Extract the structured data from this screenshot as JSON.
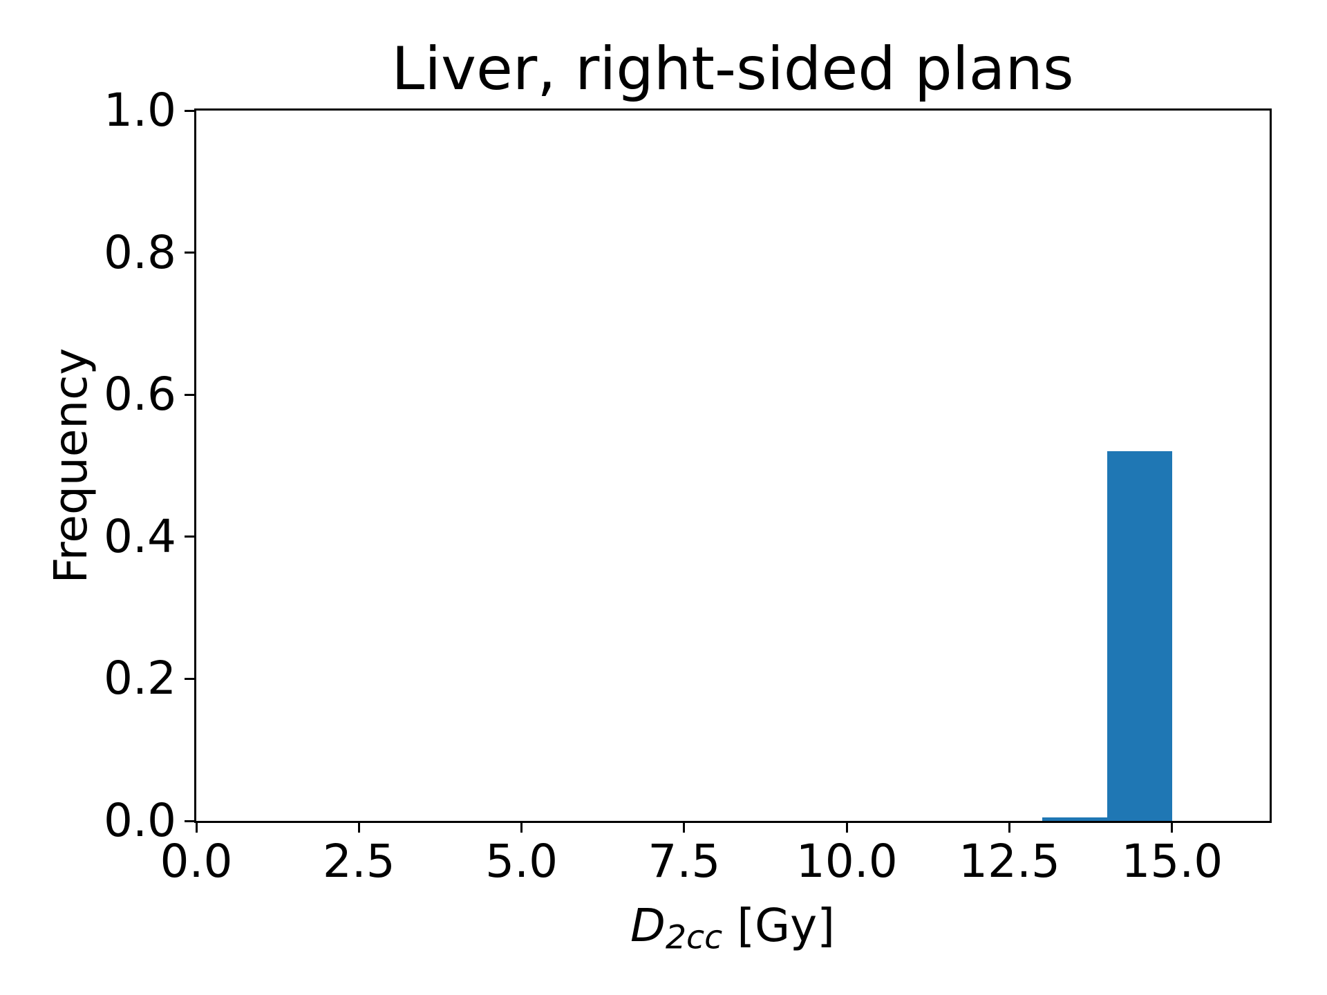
{
  "chart_data": {
    "type": "bar",
    "subtype": "histogram",
    "title": "Liver, right-sided plans",
    "ylabel": "Frequency",
    "xlabel_parts": [
      {
        "text": "D",
        "style": "italic"
      },
      {
        "text": "2cc",
        "style": "italic-subscript"
      },
      {
        "text": " [Gy]",
        "style": "normal"
      }
    ],
    "xlim": [
      0.0,
      16.5
    ],
    "ylim": [
      0.0,
      1.0
    ],
    "xticks": {
      "values": [
        0.0,
        2.5,
        5.0,
        7.5,
        10.0,
        12.5,
        15.0
      ],
      "labels": [
        "0.0",
        "2.5",
        "5.0",
        "7.5",
        "10.0",
        "12.5",
        "15.0"
      ]
    },
    "yticks": {
      "values": [
        0.0,
        0.2,
        0.4,
        0.6,
        0.8,
        1.0
      ],
      "labels": [
        "0.0",
        "0.2",
        "0.4",
        "0.6",
        "0.8",
        "1.0"
      ]
    },
    "bars": [
      {
        "x0": 13.0,
        "x1": 14.0,
        "frequency": 0.005
      },
      {
        "x0": 14.0,
        "x1": 15.0,
        "frequency": 0.52
      }
    ],
    "bar_color": "#1f77b4",
    "text_color": "#000000",
    "background": "#ffffff",
    "grid": false,
    "legend": null
  }
}
